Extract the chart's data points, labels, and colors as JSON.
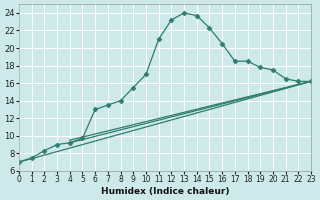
{
  "xlabel": "Humidex (Indice chaleur)",
  "background_color": "#cde9e9",
  "grid_color": "#b8d8d8",
  "line_color": "#2e7d6e",
  "xlim": [
    0,
    23
  ],
  "ylim": [
    6,
    25
  ],
  "xticks": [
    0,
    1,
    2,
    3,
    4,
    5,
    6,
    7,
    8,
    9,
    10,
    11,
    12,
    13,
    14,
    15,
    16,
    17,
    18,
    19,
    20,
    21,
    22,
    23
  ],
  "yticks": [
    6,
    8,
    10,
    12,
    14,
    16,
    18,
    20,
    22,
    24
  ],
  "line1_x": [
    0,
    1,
    2,
    3,
    4,
    5,
    6,
    7,
    8,
    9,
    10,
    11,
    12,
    13,
    14,
    15,
    16,
    17,
    18,
    19,
    20,
    21,
    22,
    23
  ],
  "line1_y": [
    7.0,
    7.5,
    8.3,
    9.0,
    9.2,
    9.7,
    13.0,
    13.5,
    14.0,
    15.5,
    17.0,
    21.0,
    23.2,
    24.0,
    23.7,
    22.3,
    20.5,
    18.5,
    18.5,
    17.8,
    17.5,
    16.5,
    16.2,
    16.2
  ],
  "line2_x": [
    0,
    23
  ],
  "line2_y": [
    7.0,
    16.2
  ],
  "line3_x": [
    4,
    23
  ],
  "line3_y": [
    9.2,
    16.2
  ],
  "line4_x": [
    4,
    23
  ],
  "line4_y": [
    9.5,
    16.2
  ]
}
